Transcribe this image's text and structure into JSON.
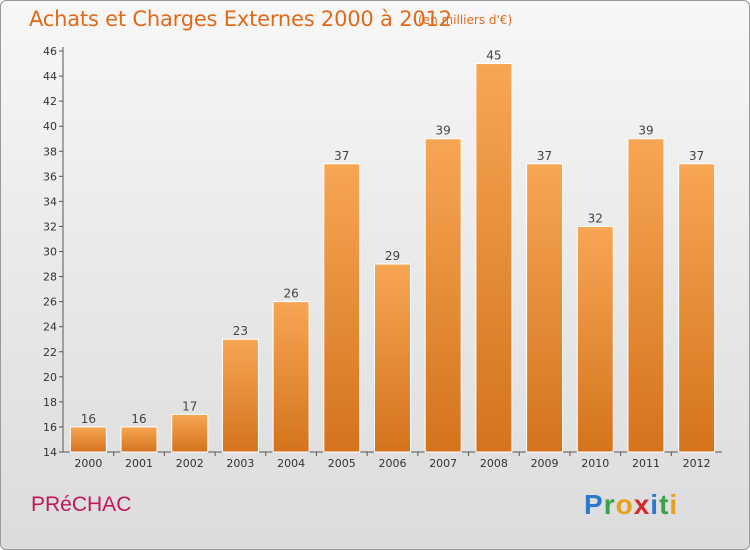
{
  "header": {
    "title": "Achats et Charges Externes 2000 à 2012",
    "subtitle": "(en milliers d'€)"
  },
  "footer": {
    "commune": "PRéCHAC",
    "brand_letters": [
      {
        "char": "P",
        "color": "#2a7ad0"
      },
      {
        "char": "r",
        "color": "#3aa04a"
      },
      {
        "char": "o",
        "color": "#e8a01a"
      },
      {
        "char": "x",
        "color": "#d62828"
      },
      {
        "char": "i",
        "color": "#2a7ad0"
      },
      {
        "char": "t",
        "color": "#3aa04a"
      },
      {
        "char": "i",
        "color": "#e8a01a"
      }
    ]
  },
  "chart_data": {
    "type": "bar",
    "title": "Achats et Charges Externes 2000 à 2012",
    "subtitle": "(en milliers d'€)",
    "categories": [
      "2000",
      "2001",
      "2002",
      "2003",
      "2004",
      "2005",
      "2006",
      "2007",
      "2008",
      "2009",
      "2010",
      "2011",
      "2012"
    ],
    "values": [
      16,
      16,
      17,
      23,
      26,
      37,
      29,
      39,
      45,
      37,
      32,
      39,
      37
    ],
    "ylim": [
      14,
      46
    ],
    "yticks": [
      14,
      16,
      18,
      20,
      22,
      24,
      26,
      28,
      30,
      32,
      34,
      36,
      38,
      40,
      42,
      44,
      46
    ],
    "grid": false,
    "colors": {
      "bar_top": "#f7a654",
      "bar_bottom": "#d5731c",
      "label": "#444444",
      "axis": "#555555"
    }
  }
}
